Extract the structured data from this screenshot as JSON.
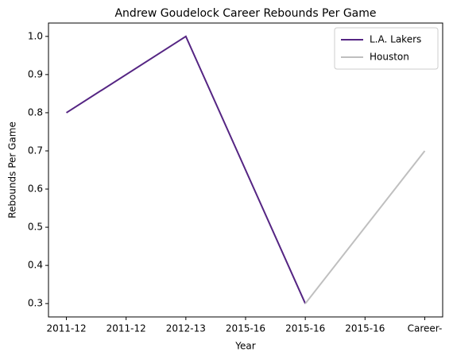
{
  "chart_data": {
    "type": "line",
    "title": "Andrew Goudelock Career Rebounds Per Game",
    "xlabel": "Year",
    "ylabel": "Rebounds Per Game",
    "series": [
      {
        "name": "L.A. Lakers",
        "color": "#552583",
        "x": [
          0,
          2,
          4
        ],
        "values": [
          0.8,
          1.0,
          0.3
        ]
      },
      {
        "name": "Houston",
        "color": "#bfbfbf",
        "x": [
          4,
          6
        ],
        "values": [
          0.3,
          0.7
        ]
      }
    ],
    "xlim": [
      -0.3,
      6.3
    ],
    "xticks": [
      {
        "value": 0,
        "label": "2011-12"
      },
      {
        "value": 1,
        "label": "2011-12"
      },
      {
        "value": 2,
        "label": "2012-13"
      },
      {
        "value": 3,
        "label": "2015-16"
      },
      {
        "value": 4,
        "label": "2015-16"
      },
      {
        "value": 5,
        "label": "2015-16"
      },
      {
        "value": 6,
        "label": "Career-"
      }
    ],
    "ylim": [
      0.265,
      1.035
    ],
    "yticks": [
      {
        "value": 0.3,
        "label": "0.3"
      },
      {
        "value": 0.4,
        "label": "0.4"
      },
      {
        "value": 0.5,
        "label": "0.5"
      },
      {
        "value": 0.6,
        "label": "0.6"
      },
      {
        "value": 0.7,
        "label": "0.7"
      },
      {
        "value": 0.8,
        "label": "0.8"
      },
      {
        "value": 0.9,
        "label": "0.9"
      },
      {
        "value": 1.0,
        "label": "1.0"
      }
    ],
    "legend": "upper right"
  }
}
